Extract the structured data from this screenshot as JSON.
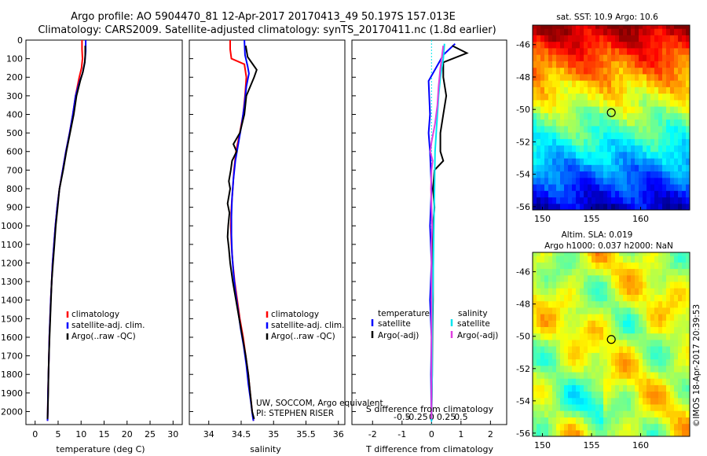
{
  "header": {
    "title_line1": "Argo profile: AO 5904470_81 12-Apr-2017 20170413_49 50.197S 157.013E",
    "title_line2": "Climatology: CARS2009. Satellite-adjusted climatology: synTS_20170411.nc (1.8d earlier)"
  },
  "colors": {
    "climatology": "#ff0000",
    "satellite": "#0000ff",
    "argo": "#000000",
    "sal_satellite": "#00e5ee",
    "sal_argo": "#e040e0",
    "zero_line": "#00e5ee"
  },
  "chart_data": [
    {
      "type": "line",
      "name": "temperature",
      "xlabel": "temperature (deg C)",
      "ylabel": "",
      "xlim": [
        -2,
        32
      ],
      "ylim": [
        2070,
        0
      ],
      "x_ticks": [
        0,
        5,
        10,
        15,
        20,
        25,
        30
      ],
      "y_ticks": [
        0,
        100,
        200,
        300,
        400,
        500,
        600,
        700,
        800,
        900,
        1000,
        1100,
        1200,
        1300,
        1400,
        1500,
        1600,
        1700,
        1800,
        1900,
        2000
      ],
      "legend": [
        "climatology",
        "satellite-adj. clim.",
        "Argo(..raw -QC)"
      ],
      "legend_position": "lower-center",
      "series": [
        {
          "name": "climatology",
          "color": "#ff0000",
          "points": [
            [
              10.2,
              0
            ],
            [
              10.2,
              50
            ],
            [
              10.3,
              100
            ],
            [
              10.1,
              150
            ],
            [
              9.6,
              200
            ],
            [
              8.8,
              300
            ],
            [
              8.2,
              400
            ],
            [
              7.5,
              500
            ],
            [
              6.7,
              600
            ],
            [
              6.0,
              700
            ],
            [
              5.3,
              800
            ],
            [
              4.8,
              900
            ],
            [
              4.4,
              1000
            ],
            [
              4.1,
              1100
            ],
            [
              3.8,
              1200
            ],
            [
              3.6,
              1300
            ],
            [
              3.4,
              1400
            ],
            [
              3.25,
              1500
            ],
            [
              3.1,
              1600
            ],
            [
              3.0,
              1700
            ],
            [
              2.9,
              1800
            ],
            [
              2.8,
              1900
            ],
            [
              2.75,
              2000
            ],
            [
              2.7,
              2050
            ]
          ]
        },
        {
          "name": "satellite-adj. clim.",
          "color": "#0000ff",
          "points": [
            [
              11.0,
              0
            ],
            [
              11.0,
              60
            ],
            [
              10.8,
              120
            ],
            [
              10.3,
              180
            ],
            [
              9.7,
              220
            ],
            [
              8.8,
              300
            ],
            [
              8.2,
              400
            ],
            [
              7.5,
              500
            ],
            [
              6.7,
              600
            ],
            [
              6.0,
              700
            ],
            [
              5.3,
              800
            ],
            [
              4.8,
              900
            ],
            [
              4.4,
              1000
            ],
            [
              4.1,
              1100
            ],
            [
              3.8,
              1200
            ],
            [
              3.6,
              1300
            ],
            [
              3.4,
              1400
            ],
            [
              3.25,
              1500
            ],
            [
              3.1,
              1600
            ],
            [
              3.0,
              1700
            ],
            [
              2.9,
              1800
            ],
            [
              2.8,
              1900
            ],
            [
              2.75,
              2000
            ],
            [
              2.7,
              2050
            ]
          ]
        },
        {
          "name": "Argo(..raw -QC)",
          "color": "#000000",
          "points": [
            [
              10.9,
              30
            ],
            [
              10.9,
              80
            ],
            [
              10.8,
              120
            ],
            [
              10.4,
              170
            ],
            [
              9.8,
              220
            ],
            [
              9.0,
              300
            ],
            [
              8.4,
              400
            ],
            [
              7.6,
              500
            ],
            [
              6.8,
              600
            ],
            [
              6.1,
              700
            ],
            [
              5.3,
              800
            ],
            [
              4.9,
              900
            ],
            [
              4.5,
              1000
            ],
            [
              4.2,
              1100
            ],
            [
              3.9,
              1200
            ],
            [
              3.6,
              1300
            ],
            [
              3.45,
              1400
            ],
            [
              3.3,
              1500
            ],
            [
              3.15,
              1600
            ],
            [
              3.0,
              1700
            ],
            [
              2.9,
              1800
            ],
            [
              2.85,
              1900
            ],
            [
              2.75,
              2000
            ],
            [
              2.7,
              2040
            ]
          ]
        }
      ]
    },
    {
      "type": "line",
      "name": "salinity",
      "xlabel": "salinity",
      "ylabel": "",
      "xlim": [
        33.7,
        36.1
      ],
      "ylim": [
        2070,
        0
      ],
      "x_ticks": [
        34,
        34.5,
        35,
        35.5,
        36
      ],
      "legend": [
        "climatology",
        "satellite-adj. clim.",
        "Argo(..raw -QC)"
      ],
      "legend_position": "lower-right",
      "annotation": [
        "UW, SOCCOM, Argo equivalent",
        "PI: STEPHEN RISER"
      ],
      "series": [
        {
          "name": "climatology",
          "color": "#ff0000",
          "points": [
            [
              34.33,
              0
            ],
            [
              34.33,
              50
            ],
            [
              34.35,
              100
            ],
            [
              34.55,
              130
            ],
            [
              34.58,
              200
            ],
            [
              34.56,
              300
            ],
            [
              34.53,
              400
            ],
            [
              34.48,
              500
            ],
            [
              34.42,
              600
            ],
            [
              34.39,
              700
            ],
            [
              34.37,
              800
            ],
            [
              34.35,
              900
            ],
            [
              34.34,
              1000
            ],
            [
              34.35,
              1100
            ],
            [
              34.37,
              1200
            ],
            [
              34.4,
              1300
            ],
            [
              34.44,
              1400
            ],
            [
              34.48,
              1500
            ],
            [
              34.53,
              1600
            ],
            [
              34.57,
              1700
            ],
            [
              34.61,
              1800
            ],
            [
              34.64,
              1900
            ],
            [
              34.67,
              2000
            ],
            [
              34.69,
              2050
            ]
          ]
        },
        {
          "name": "satellite-adj. clim.",
          "color": "#0000ff",
          "points": [
            [
              34.55,
              0
            ],
            [
              34.56,
              80
            ],
            [
              34.6,
              140
            ],
            [
              34.62,
              180
            ],
            [
              34.58,
              250
            ],
            [
              34.55,
              350
            ],
            [
              34.51,
              450
            ],
            [
              34.46,
              550
            ],
            [
              34.41,
              650
            ],
            [
              34.38,
              750
            ],
            [
              34.36,
              850
            ],
            [
              34.35,
              950
            ],
            [
              34.35,
              1050
            ],
            [
              34.36,
              1150
            ],
            [
              34.38,
              1250
            ],
            [
              34.41,
              1350
            ],
            [
              34.45,
              1450
            ],
            [
              34.49,
              1550
            ],
            [
              34.54,
              1650
            ],
            [
              34.58,
              1750
            ],
            [
              34.61,
              1850
            ],
            [
              34.65,
              1950
            ],
            [
              34.68,
              2030
            ],
            [
              34.69,
              2050
            ]
          ]
        },
        {
          "name": "Argo(..raw -QC)",
          "color": "#000000",
          "points": [
            [
              34.57,
              30
            ],
            [
              34.6,
              90
            ],
            [
              34.74,
              160
            ],
            [
              34.7,
              200
            ],
            [
              34.58,
              300
            ],
            [
              34.55,
              400
            ],
            [
              34.48,
              500
            ],
            [
              34.38,
              560
            ],
            [
              34.43,
              600
            ],
            [
              34.36,
              650
            ],
            [
              34.34,
              700
            ],
            [
              34.31,
              760
            ],
            [
              34.33,
              800
            ],
            [
              34.29,
              880
            ],
            [
              34.32,
              930
            ],
            [
              34.3,
              1000
            ],
            [
              34.29,
              1060
            ],
            [
              34.31,
              1120
            ],
            [
              34.33,
              1200
            ],
            [
              34.37,
              1300
            ],
            [
              34.42,
              1400
            ],
            [
              34.47,
              1500
            ],
            [
              34.52,
              1600
            ],
            [
              34.57,
              1700
            ],
            [
              34.61,
              1800
            ],
            [
              34.64,
              1900
            ],
            [
              34.67,
              2000
            ],
            [
              34.7,
              2040
            ]
          ]
        }
      ]
    },
    {
      "type": "line",
      "name": "differences",
      "xlabel": "T difference from climatology",
      "xlabel_top": "S difference from climatology",
      "xlim": [
        -2.7,
        2.55
      ],
      "ylim": [
        2070,
        0
      ],
      "x_ticks": [
        -2,
        -1,
        0,
        1,
        2
      ],
      "s_ticks": [
        {
          "value": -0.5,
          "label": "-0.5"
        },
        {
          "value": -0.25,
          "label": "-0.25"
        },
        {
          "value": 0,
          "label": "0"
        },
        {
          "value": 0.25,
          "label": "0.25"
        },
        {
          "value": 0.5,
          "label": "0.5"
        }
      ],
      "legend": {
        "temperature_heading": "temperature",
        "salinity_heading": "salinity",
        "entries": [
          "satellite",
          "Argo(-adj)",
          "satellite",
          "Argo(-adj)"
        ]
      },
      "series": [
        {
          "name": "temperature satellite",
          "color": "#0000ff",
          "points": [
            [
              0.8,
              20
            ],
            [
              0.4,
              80
            ],
            [
              -0.1,
              220
            ],
            [
              -0.05,
              400
            ],
            [
              -0.1,
              500
            ],
            [
              -0.05,
              600
            ],
            [
              0.0,
              800
            ],
            [
              -0.05,
              1000
            ],
            [
              0.0,
              1200
            ],
            [
              -0.05,
              1400
            ],
            [
              0.0,
              1600
            ],
            [
              -0.02,
              1800
            ],
            [
              0.0,
              2050
            ]
          ]
        },
        {
          "name": "temperature Argo(-adj)",
          "color": "#000000",
          "points": [
            [
              0.7,
              30
            ],
            [
              1.2,
              70
            ],
            [
              0.4,
              120
            ],
            [
              0.4,
              200
            ],
            [
              0.5,
              300
            ],
            [
              0.4,
              400
            ],
            [
              0.3,
              500
            ],
            [
              0.3,
              600
            ],
            [
              0.4,
              650
            ],
            [
              0.1,
              700
            ],
            [
              0.05,
              800
            ],
            [
              0.1,
              900
            ],
            [
              0.05,
              1000
            ],
            [
              0.05,
              1200
            ],
            [
              0.05,
              1400
            ],
            [
              0.03,
              1600
            ],
            [
              0.02,
              1800
            ],
            [
              0.0,
              2040
            ]
          ]
        },
        {
          "name": "salinity satellite",
          "color": "#00e5ee",
          "points": [
            [
              0.22,
              20
            ],
            [
              0.2,
              100
            ],
            [
              0.15,
              200
            ],
            [
              0.12,
              300
            ],
            [
              0.1,
              400
            ],
            [
              0.08,
              500
            ],
            [
              0.06,
              600
            ],
            [
              0.05,
              800
            ],
            [
              0.04,
              1000
            ],
            [
              0.03,
              1200
            ],
            [
              0.02,
              1400
            ],
            [
              0.01,
              1600
            ],
            [
              0.01,
              1800
            ],
            [
              0.0,
              2050
            ]
          ]
        },
        {
          "name": "salinity Argo(-adj)",
          "color": "#e040e0",
          "points": [
            [
              0.2,
              30
            ],
            [
              0.15,
              150
            ],
            [
              0.12,
              250
            ],
            [
              0.1,
              350
            ],
            [
              0.06,
              450
            ],
            [
              0.0,
              550
            ],
            [
              -0.02,
              600
            ],
            [
              0.02,
              650
            ],
            [
              0.0,
              700
            ],
            [
              -0.01,
              800
            ],
            [
              0.0,
              900
            ],
            [
              0.01,
              1000
            ],
            [
              0.0,
              1100
            ],
            [
              0.0,
              1200
            ],
            [
              0.0,
              1400
            ],
            [
              0.0,
              1600
            ],
            [
              0.0,
              1800
            ],
            [
              0.0,
              2040
            ]
          ]
        }
      ]
    },
    {
      "type": "heatmap",
      "name": "sst_map",
      "title": "sat. SST: 10.9 Argo: 10.6",
      "xlim": [
        149,
        165
      ],
      "ylim": [
        -56.2,
        -44.8
      ],
      "x_ticks": [
        150,
        155,
        160
      ],
      "y_ticks": [
        -46,
        -48,
        -50,
        -52,
        -54,
        -56
      ],
      "marker": [
        157.013,
        -50.197
      ]
    },
    {
      "type": "heatmap",
      "name": "sla_map",
      "title": "Altim. SLA: 0.019",
      "subtitle": "Argo h1000: 0.037 h2000: NaN",
      "xlim": [
        149,
        165
      ],
      "ylim": [
        -56.2,
        -44.8
      ],
      "x_ticks": [
        150,
        155,
        160
      ],
      "y_ticks": [
        -46,
        -48,
        -50,
        -52,
        -54,
        -56
      ],
      "marker": [
        157.013,
        -50.197
      ]
    }
  ],
  "credit": "©IMOS 18-Apr-2017 20:39:53"
}
